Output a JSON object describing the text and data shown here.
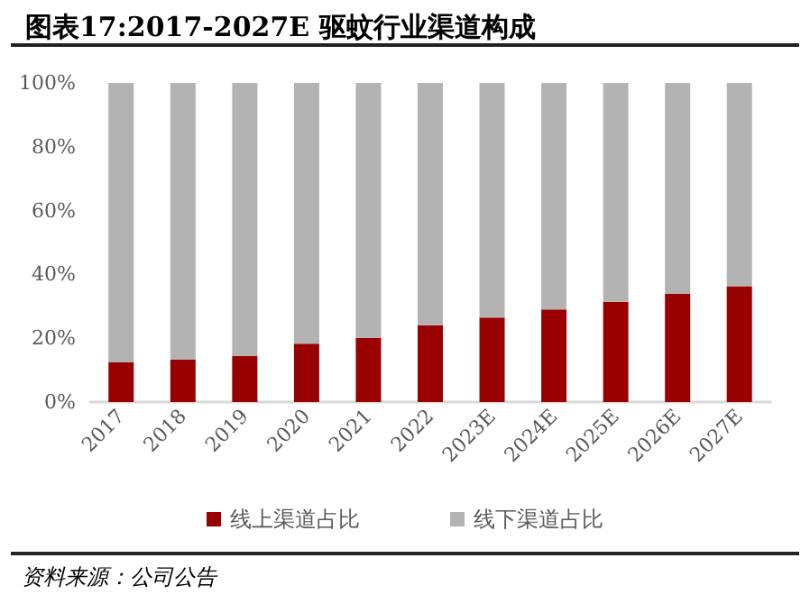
{
  "chart_data": {
    "type": "bar",
    "title": "图表17:2017-2027E 驱蚊行业渠道构成",
    "stacked": true,
    "categories": [
      "2017",
      "2018",
      "2019",
      "2020",
      "2021",
      "2022",
      "2023E",
      "2024E",
      "2025E",
      "2026E",
      "2027E"
    ],
    "series": [
      {
        "name": "线上渠道占比",
        "color": "#990000",
        "values": [
          12.4,
          13.3,
          14.5,
          18.3,
          20.1,
          24.1,
          26.5,
          29,
          31.4,
          34,
          36.3
        ]
      },
      {
        "name": "线下渠道占比",
        "color": "#b3b3b3",
        "values": [
          87.6,
          86.7,
          85.5,
          81.7,
          79.9,
          75.9,
          73.5,
          71,
          68.6,
          66,
          63.7
        ]
      }
    ],
    "ylim": [
      0,
      100
    ],
    "yticks": [
      {
        "value": 0,
        "label": "0%"
      },
      {
        "value": 20,
        "label": "20%"
      },
      {
        "value": 40,
        "label": "40%"
      },
      {
        "value": 60,
        "label": "60%"
      },
      {
        "value": 80,
        "label": "80%"
      },
      {
        "value": 100,
        "label": "100%"
      }
    ],
    "grid": false,
    "legend": "bottom",
    "annotations": [
      "资料来源：公司公告"
    ]
  }
}
